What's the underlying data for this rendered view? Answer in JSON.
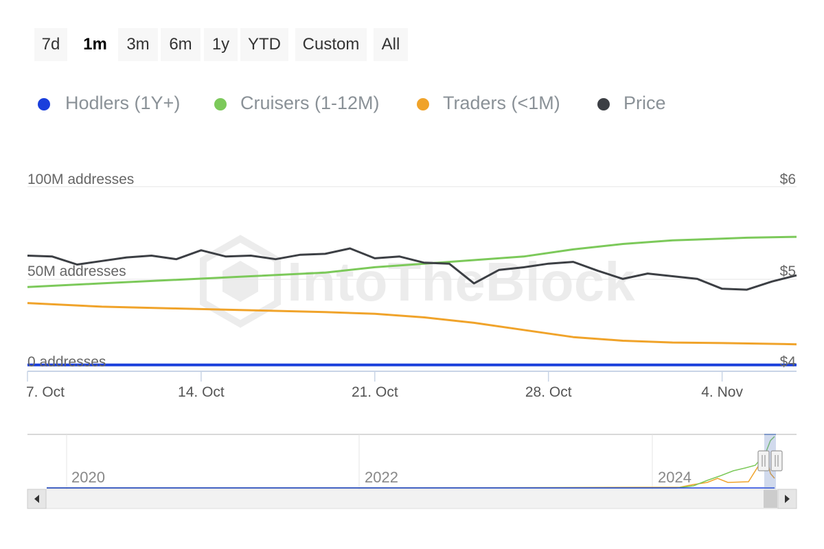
{
  "range_selector": {
    "buttons": [
      {
        "label": "7d",
        "active": false
      },
      {
        "label": "1m",
        "active": true
      },
      {
        "label": "3m",
        "active": false
      },
      {
        "label": "6m",
        "active": false
      },
      {
        "label": "1y",
        "active": false
      },
      {
        "label": "YTD",
        "active": false
      },
      {
        "label": "Custom",
        "active": false
      },
      {
        "label": "All",
        "active": false
      }
    ]
  },
  "watermark": "IntoTheBlock",
  "colors": {
    "hodlers": "#1a3fdc",
    "cruisers": "#7cc95a",
    "traders": "#f0a32a",
    "price": "#3c3f44",
    "grid": "#e6e6e6",
    "axis_text": "#666666",
    "legend_text": "#8a9197"
  },
  "chart_data": {
    "type": "line",
    "legend": [
      "Hodlers (1Y+)",
      "Cruisers (1-12M)",
      "Traders (<1M)",
      "Price"
    ],
    "x_ticks": [
      "7. Oct",
      "14. Oct",
      "21. Oct",
      "28. Oct",
      "4. Nov"
    ],
    "y_left": {
      "ticks": [
        "0 addresses",
        "50M addresses",
        "100M addresses"
      ],
      "range": [
        0,
        100
      ]
    },
    "y_right": {
      "ticks": [
        "$4",
        "$5",
        "$6"
      ],
      "range": [
        4,
        6
      ]
    },
    "x_range": [
      0,
      31
    ],
    "series": [
      {
        "name": "Hodlers (1Y+)",
        "axis": "left",
        "key": "hodlers",
        "x": [
          0,
          31
        ],
        "values": [
          0.5,
          0.5
        ]
      },
      {
        "name": "Cruisers (1-12M)",
        "axis": "left",
        "key": "cruisers",
        "x": [
          0,
          3,
          6,
          9,
          12,
          14,
          16,
          18,
          20,
          22,
          24,
          26,
          28,
          29,
          31
        ],
        "values": [
          44,
          46,
          48,
          50,
          52,
          55,
          57,
          59,
          61,
          65,
          68,
          70,
          71,
          71.5,
          72
        ]
      },
      {
        "name": "Traders (<1M)",
        "axis": "left",
        "key": "traders",
        "x": [
          0,
          3,
          6,
          9,
          12,
          14,
          16,
          18,
          20,
          22,
          24,
          26,
          28,
          31
        ],
        "values": [
          35,
          33,
          32,
          31,
          30,
          29,
          27,
          24,
          20,
          16,
          14,
          13,
          12.7,
          12
        ]
      },
      {
        "name": "Price",
        "axis": "right",
        "key": "price",
        "x": [
          0,
          1,
          2,
          3,
          4,
          5,
          6,
          7,
          8,
          9,
          10,
          11,
          12,
          13,
          14,
          15,
          16,
          17,
          18,
          19,
          20,
          21,
          22,
          23,
          24,
          25,
          26,
          27,
          28,
          29,
          30,
          31
        ],
        "values": [
          5.23,
          5.22,
          5.13,
          5.17,
          5.21,
          5.23,
          5.19,
          5.29,
          5.22,
          5.23,
          5.19,
          5.24,
          5.25,
          5.31,
          5.2,
          5.22,
          5.15,
          5.14,
          4.92,
          5.07,
          5.1,
          5.14,
          5.16,
          5.06,
          4.97,
          5.03,
          5.0,
          4.97,
          4.86,
          4.85,
          4.94,
          5.01
        ]
      }
    ]
  },
  "navigator": {
    "year_labels": [
      "2020",
      "2022",
      "2024"
    ],
    "scroll_left_icon": "arrow-left-icon",
    "scroll_right_icon": "arrow-right-icon",
    "handle_icon": "grip-icon"
  }
}
